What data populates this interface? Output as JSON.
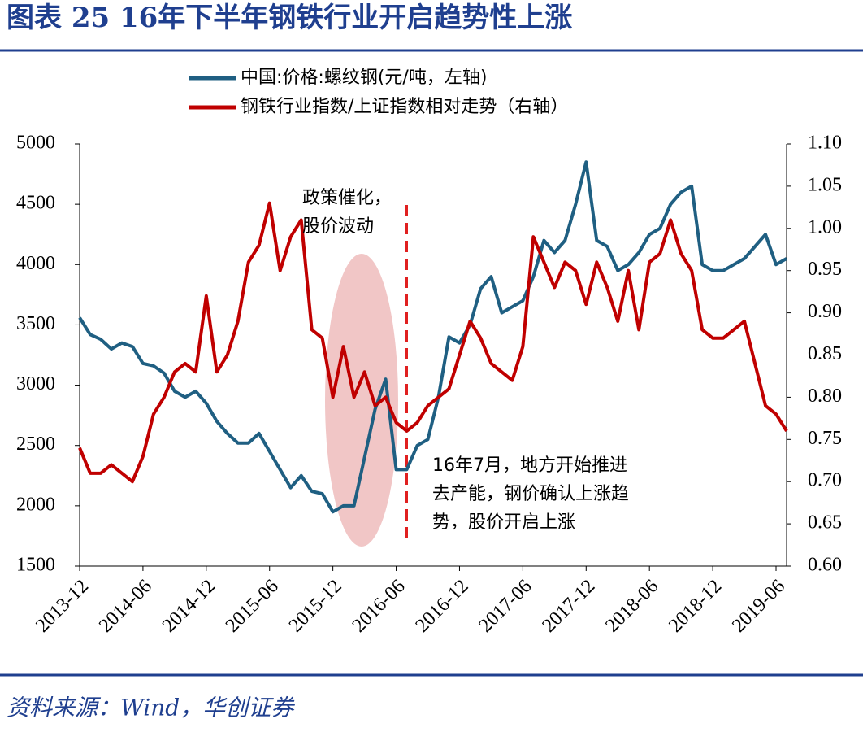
{
  "chart_data": {
    "type": "line",
    "title": "图表 25   16年下半年钢铁行业开启趋势性上涨",
    "source": "资料来源：Wind，华创证券",
    "annotations": [
      [
        "政策催化，",
        "股价波动"
      ],
      [
        "16年7月，地方开始推进",
        "去产能，钢价确认上涨趋",
        "势，股价开启上涨"
      ]
    ],
    "x": [
      "2013-12",
      "2014-01",
      "2014-02",
      "2014-03",
      "2014-04",
      "2014-05",
      "2014-06",
      "2014-07",
      "2014-08",
      "2014-09",
      "2014-10",
      "2014-11",
      "2014-12",
      "2015-01",
      "2015-02",
      "2015-03",
      "2015-04",
      "2015-05",
      "2015-06",
      "2015-07",
      "2015-08",
      "2015-09",
      "2015-10",
      "2015-11",
      "2015-12",
      "2016-01",
      "2016-02",
      "2016-03",
      "2016-04",
      "2016-05",
      "2016-06",
      "2016-07",
      "2016-08",
      "2016-09",
      "2016-10",
      "2016-11",
      "2016-12",
      "2017-01",
      "2017-02",
      "2017-03",
      "2017-04",
      "2017-05",
      "2017-06",
      "2017-07",
      "2017-08",
      "2017-09",
      "2017-10",
      "2017-11",
      "2017-12",
      "2018-01",
      "2018-02",
      "2018-03",
      "2018-04",
      "2018-05",
      "2018-06",
      "2018-07",
      "2018-08",
      "2018-09",
      "2018-10",
      "2018-11",
      "2018-12",
      "2019-01",
      "2019-02",
      "2019-03",
      "2019-04",
      "2019-05",
      "2019-06",
      "2019-07"
    ],
    "xlim": [
      "2013-12",
      "2019-07"
    ],
    "xticks": [
      "2013-12",
      "2014-06",
      "2014-12",
      "2015-06",
      "2015-12",
      "2016-06",
      "2016-12",
      "2017-06",
      "2017-12",
      "2018-06",
      "2018-12",
      "2019-06"
    ],
    "ylim": [
      1500,
      5000
    ],
    "yticks": [
      1500,
      2000,
      2500,
      3000,
      3500,
      4000,
      4500,
      5000
    ],
    "y2lim": [
      0.6,
      1.1
    ],
    "y2ticks": [
      {
        "value": 0.6,
        "label": "0.60"
      },
      {
        "value": 0.65,
        "label": "0.65"
      },
      {
        "value": 0.7,
        "label": "0.70"
      },
      {
        "value": 0.75,
        "label": "0.75"
      },
      {
        "value": 0.8,
        "label": "0.80"
      },
      {
        "value": 0.85,
        "label": "0.85"
      },
      {
        "value": 0.9,
        "label": "0.90"
      },
      {
        "value": 0.95,
        "label": "0.95"
      },
      {
        "value": 1.0,
        "label": "1.00"
      },
      {
        "value": 1.05,
        "label": "1.05"
      },
      {
        "value": 1.1,
        "label": "1.10"
      }
    ],
    "series": [
      {
        "name": "中国:价格:螺纹钢(元/吨，左轴)",
        "color": "#1f5f82",
        "axis": "y",
        "values": [
          3560,
          3420,
          3380,
          3300,
          3350,
          3320,
          3180,
          3160,
          3100,
          2950,
          2900,
          2950,
          2850,
          2700,
          2600,
          2520,
          2520,
          2600,
          2450,
          2300,
          2150,
          2250,
          2120,
          2100,
          1950,
          2000,
          2000,
          2400,
          2800,
          3050,
          2300,
          2300,
          2500,
          2550,
          2900,
          3400,
          3350,
          3500,
          3800,
          3900,
          3600,
          3650,
          3700,
          3900,
          4200,
          4100,
          4200,
          4500,
          4850,
          4200,
          4150,
          3950,
          4000,
          4100,
          4250,
          4300,
          4500,
          4600,
          4650,
          4000,
          3950,
          3950,
          4000,
          4050,
          4150,
          4250,
          4000,
          4050
        ]
      },
      {
        "name": "钢铁行业指数/上证指数相对走势（右轴）",
        "color": "#c00000",
        "axis": "y2",
        "values": [
          0.74,
          0.71,
          0.71,
          0.72,
          0.71,
          0.7,
          0.73,
          0.78,
          0.8,
          0.83,
          0.84,
          0.83,
          0.92,
          0.83,
          0.85,
          0.89,
          0.96,
          0.98,
          1.03,
          0.95,
          0.99,
          1.01,
          0.88,
          0.87,
          0.8,
          0.86,
          0.8,
          0.83,
          0.79,
          0.8,
          0.77,
          0.76,
          0.77,
          0.79,
          0.8,
          0.81,
          0.85,
          0.89,
          0.87,
          0.84,
          0.83,
          0.82,
          0.86,
          0.99,
          0.96,
          0.93,
          0.96,
          0.95,
          0.91,
          0.96,
          0.93,
          0.89,
          0.95,
          0.88,
          0.96,
          0.97,
          1.01,
          0.97,
          0.95,
          0.88,
          0.87,
          0.87,
          0.88,
          0.89,
          0.84,
          0.79,
          0.78,
          0.76
        ]
      }
    ]
  }
}
